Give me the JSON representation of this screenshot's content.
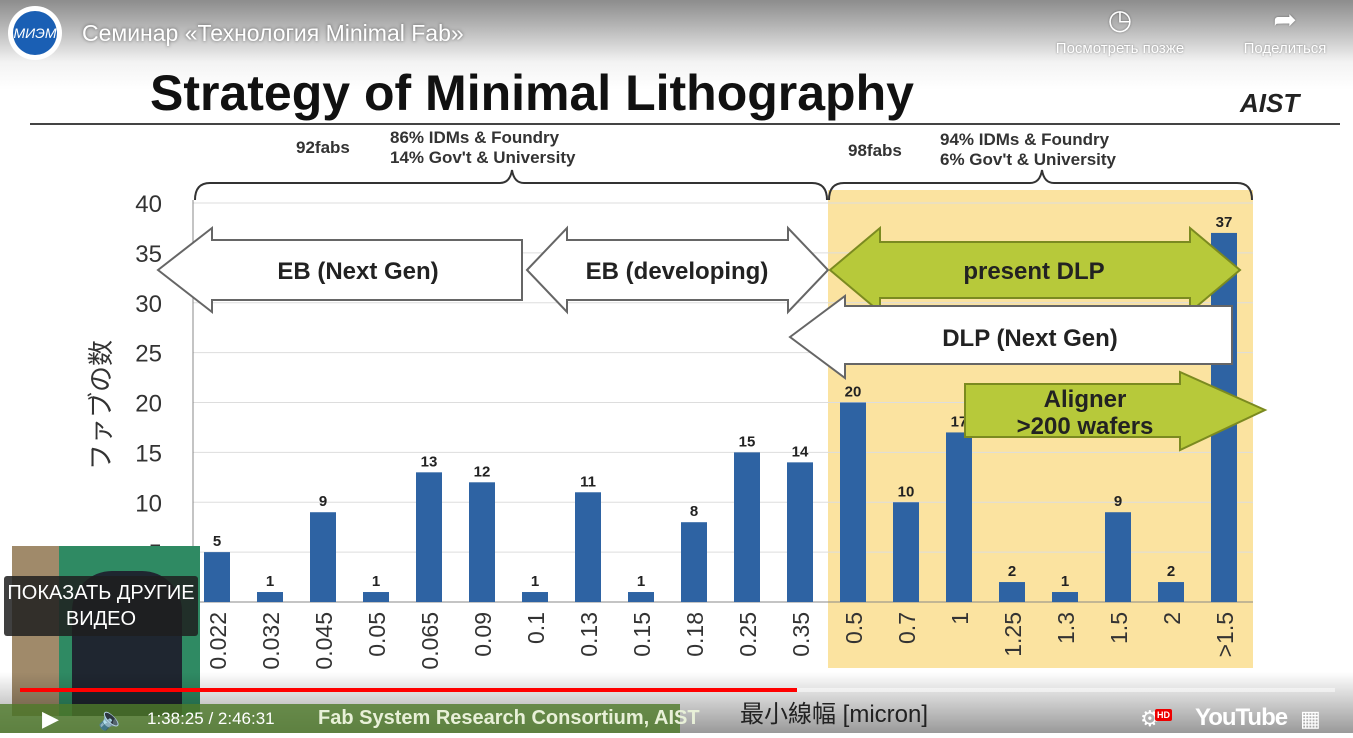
{
  "player": {
    "video_title": "Семинар «Технология Minimal Fab»",
    "watch_later_label": "Посмотреть позже",
    "share_label": "Поделиться",
    "more_videos_label": "ПОКАЗАТЬ ДРУГИЕ ВИДЕО",
    "current_time": "1:38:25",
    "duration": "2:46:31",
    "time_display": "1:38:25 / 2:46:31",
    "progress_fraction": 0.591,
    "hd_badge": "HD",
    "youtube_logo": "YouTube",
    "channel_logo_text": "МИЭМ",
    "accent": "#ff0000"
  },
  "slide": {
    "title": "Strategy of Minimal Lithography",
    "org": "AIST",
    "footer": "Fab System Research Consortium, AIST",
    "left_group": {
      "fabs": "92fabs",
      "line1": "86% IDMs & Foundry",
      "line2": "14% Gov't & University"
    },
    "right_group": {
      "fabs": "98fabs",
      "line1": "94% IDMs & Foundry",
      "line2": "6% Gov't & University"
    },
    "arrows": {
      "eb_next": "EB (Next Gen)",
      "eb_dev": "EB (developing)",
      "present_dlp": "present DLP",
      "dlp_next": "DLP (Next Gen)",
      "aligner1": "Aligner",
      "aligner2": ">200 wafers"
    }
  },
  "chart_data": {
    "type": "bar",
    "title": "",
    "xlabel": "最小線幅 [micron]",
    "ylabel": "ファブの数",
    "ylim": [
      0,
      40
    ],
    "yticks": [
      5,
      10,
      15,
      20,
      25,
      30,
      35,
      40
    ],
    "categories": [
      "0.022",
      "0.032",
      "0.045",
      "0.05",
      "0.065",
      "0.09",
      "0.1",
      "0.13",
      "0.15",
      "0.18",
      "0.25",
      "0.35",
      "0.5",
      "0.7",
      "1",
      "1.25",
      "1.3",
      "1.5",
      "2",
      ">1.5"
    ],
    "values": [
      5,
      1,
      9,
      1,
      13,
      12,
      1,
      11,
      1,
      8,
      15,
      14,
      20,
      10,
      17,
      2,
      1,
      9,
      2,
      37
    ],
    "highlight_from_category": "0.5",
    "bar_color": "#2e63a3",
    "highlight_color": "#fbe3a0"
  }
}
